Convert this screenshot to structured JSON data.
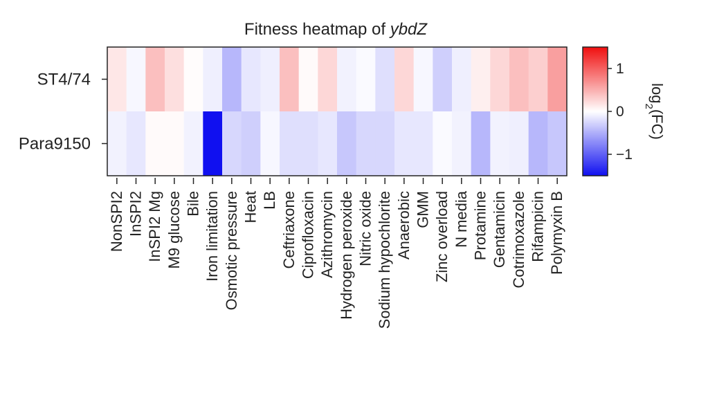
{
  "chart_data": {
    "type": "heatmap",
    "title_prefix": "Fitness heatmap of ",
    "title_gene": "ybdZ",
    "rows": [
      "ST4/74",
      "Para9150"
    ],
    "columns": [
      "NonSPI2",
      "InSPI2",
      "InSPI2 Mg",
      "M9 glucose",
      "Bile",
      "Iron limitation",
      "Osmotic pressure",
      "Heat",
      "LB",
      "Ceftriaxone",
      "Ciprofloxacin",
      "Azithromycin",
      "Hydrogen peroxide",
      "Nitric oxide",
      "Sodium hypochlorite",
      "Anaerobic",
      "GMM",
      "Zinc overload",
      "N media",
      "Protamine",
      "Gentamicin",
      "Cotrimoxazole",
      "Rifampicin",
      "Polymyxin B"
    ],
    "values": [
      [
        0.15,
        -0.05,
        0.4,
        0.2,
        0.02,
        -0.1,
        -0.45,
        -0.15,
        -0.1,
        0.4,
        0.03,
        0.25,
        -0.08,
        -0.03,
        -0.2,
        0.25,
        -0.05,
        -0.3,
        -0.1,
        0.1,
        0.25,
        0.4,
        0.3,
        0.6
      ],
      [
        -0.08,
        -0.15,
        0.03,
        0.03,
        -0.08,
        -1.5,
        -0.25,
        -0.3,
        -0.05,
        -0.2,
        -0.2,
        -0.15,
        -0.35,
        -0.25,
        -0.25,
        -0.15,
        -0.15,
        -0.03,
        -0.08,
        -0.45,
        -0.08,
        -0.1,
        -0.45,
        -0.35
      ]
    ],
    "color_range": [
      -1.5,
      1.5
    ],
    "colorbar": {
      "ticks": [
        1,
        0,
        -1
      ],
      "tick_labels": [
        "1",
        "0",
        "−1"
      ],
      "label_prefix": "log",
      "label_subscript": "2",
      "label_suffix": "(FC)"
    },
    "colors": {
      "low": "#1010f0",
      "mid": "#ffffff",
      "high": "#f01010"
    }
  }
}
